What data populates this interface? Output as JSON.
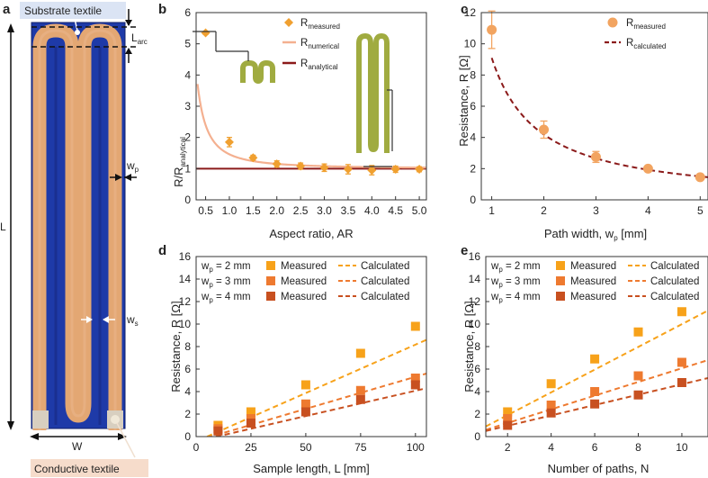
{
  "panels": {
    "a": {
      "letter": "a",
      "labels": {
        "substrate": "Substrate textile",
        "conductive": "Conductive textile",
        "L": "L",
        "W": "W",
        "Larc": "L",
        "Larc_sub": "arc",
        "wp": "w",
        "wp_sub": "p",
        "ws": "w",
        "ws_sub": "s"
      },
      "colors": {
        "substrate": "#1e3aa8",
        "conductive": "#e3a773",
        "label_bg": "#f6dccb"
      }
    },
    "b": {
      "letter": "b"
    },
    "c": {
      "letter": "c"
    },
    "d": {
      "letter": "d"
    },
    "e": {
      "letter": "e"
    }
  },
  "chart_data": [
    {
      "id": "b",
      "type": "scatter",
      "xlabel": "Aspect ratio, AR",
      "ylabel": "R/R",
      "ylabel_sub": "analytical",
      "xlim": [
        0.3,
        5.15
      ],
      "ylim": [
        0,
        6
      ],
      "xticks": [
        "0.5",
        "1.0",
        "1.5",
        "2.0",
        "2.5",
        "3.0",
        "3.5",
        "4.0",
        "4.5",
        "5.0"
      ],
      "yticks": [
        "0",
        "1",
        "2",
        "3",
        "4",
        "5",
        "6"
      ],
      "legend": [
        {
          "main": "R",
          "sub": "measured",
          "color": "#f0a030",
          "marker": "diamond"
        },
        {
          "main": "R",
          "sub": "numerical",
          "color": "#f4b090",
          "marker": "line"
        },
        {
          "main": "R",
          "sub": "analytical",
          "color": "#8b1a1a",
          "marker": "line"
        }
      ],
      "series": [
        {
          "name": "R measured",
          "x": [
            0.5,
            1.0,
            1.5,
            2.0,
            2.5,
            3.0,
            3.5,
            4.0,
            4.5,
            5.0
          ],
          "y": [
            5.35,
            1.85,
            1.35,
            1.15,
            1.08,
            1.03,
            0.98,
            0.95,
            0.98,
            0.98
          ],
          "err": [
            0.05,
            0.15,
            0.08,
            0.1,
            0.1,
            0.12,
            0.15,
            0.15,
            0.1,
            0.08
          ]
        },
        {
          "name": "R numerical",
          "model": "1 + 0.46/x^1.6"
        },
        {
          "name": "R analytical",
          "y_const": 1
        }
      ]
    },
    {
      "id": "c",
      "type": "scatter",
      "xlabel": "Path width, w",
      "xlabel_sub": "p",
      "xlabel_unit": " [mm]",
      "ylabel": "Resistance, R [Ω]",
      "xlim": [
        0.8,
        5.15
      ],
      "ylim": [
        0,
        12
      ],
      "xticks": [
        "1",
        "2",
        "3",
        "4",
        "5"
      ],
      "yticks": [
        "0",
        "2",
        "4",
        "6",
        "8",
        "10",
        "12"
      ],
      "legend": [
        {
          "main": "R",
          "sub": "measured",
          "color": "#f2a460",
          "marker": "circle"
        },
        {
          "main": "R",
          "sub": "calculated",
          "color": "#8b1a1a",
          "marker": "dash"
        }
      ],
      "series": [
        {
          "name": "R measured",
          "x": [
            1,
            2,
            3,
            4,
            5
          ],
          "y": [
            10.9,
            4.5,
            2.75,
            2.0,
            1.45
          ],
          "err": [
            1.2,
            0.55,
            0.35,
            0.1,
            0.1
          ]
        },
        {
          "name": "R calculated",
          "model": "9.1/x^1.12"
        }
      ]
    },
    {
      "id": "d",
      "type": "scatter",
      "xlabel": "Sample length, L [mm]",
      "ylabel": "Resistance, R [Ω]",
      "xlim": [
        0,
        105
      ],
      "ylim": [
        0,
        16
      ],
      "xticks": [
        "0",
        "25",
        "50",
        "75",
        "100"
      ],
      "yticks": [
        "0",
        "2",
        "4",
        "6",
        "8",
        "10",
        "12",
        "14",
        "16"
      ],
      "legend": [
        {
          "wp": "w",
          "wp_sub": "p",
          "width": " = 2 mm",
          "measured": "Measured",
          "calculated": "Calculated",
          "color": "#f7a21a"
        },
        {
          "wp": "w",
          "wp_sub": "p",
          "width": " = 3 mm",
          "measured": "Measured",
          "calculated": "Calculated",
          "color": "#ee7a30"
        },
        {
          "wp": "w",
          "wp_sub": "p",
          "width": " = 4 mm",
          "measured": "Measured",
          "calculated": "Calculated",
          "color": "#c85020"
        }
      ],
      "series": [
        {
          "name": "wp = 2 mm",
          "x": [
            10,
            25,
            50,
            75,
            100
          ],
          "y": [
            1.0,
            2.2,
            4.6,
            7.4,
            9.8
          ],
          "fit": [
            [
              5,
              0.0
            ],
            [
              105,
              8.6
            ]
          ]
        },
        {
          "name": "wp = 3 mm",
          "x": [
            10,
            25,
            50,
            75,
            100
          ],
          "y": [
            0.7,
            1.6,
            2.9,
            4.1,
            5.2
          ],
          "fit": [
            [
              5,
              -0.1
            ],
            [
              105,
              5.6
            ]
          ]
        },
        {
          "name": "wp = 4 mm",
          "x": [
            10,
            25,
            50,
            75,
            100
          ],
          "y": [
            0.5,
            1.2,
            2.2,
            3.3,
            4.6
          ],
          "fit": [
            [
              5,
              -0.2
            ],
            [
              105,
              4.3
            ]
          ]
        }
      ]
    },
    {
      "id": "e",
      "type": "scatter",
      "xlabel": "Number of paths, N",
      "ylabel": "Resistance, R [Ω]",
      "xlim": [
        1,
        11.2
      ],
      "ylim": [
        0,
        16
      ],
      "xticks": [
        "2",
        "4",
        "6",
        "8",
        "10"
      ],
      "yticks": [
        "0",
        "2",
        "4",
        "6",
        "8",
        "10",
        "12",
        "14",
        "16"
      ],
      "legend": [
        {
          "wp": "w",
          "wp_sub": "p",
          "width": " = 2 mm",
          "measured": "Measured",
          "calculated": "Calculated",
          "color": "#f7a21a"
        },
        {
          "wp": "w",
          "wp_sub": "p",
          "width": " = 3 mm",
          "measured": "Measured",
          "calculated": "Calculated",
          "color": "#ee7a30"
        },
        {
          "wp": "w",
          "wp_sub": "p",
          "width": " = 4 mm",
          "measured": "Measured",
          "calculated": "Calculated",
          "color": "#c85020"
        }
      ],
      "series": [
        {
          "name": "wp = 2 mm",
          "x": [
            2,
            4,
            6,
            8,
            10
          ],
          "y": [
            2.2,
            4.7,
            6.9,
            9.3,
            11.1
          ],
          "fit": [
            [
              1,
              0.9
            ],
            [
              11.2,
              11.2
            ]
          ]
        },
        {
          "name": "wp = 3 mm",
          "x": [
            2,
            4,
            6,
            8,
            10
          ],
          "y": [
            1.6,
            2.8,
            4.0,
            5.4,
            6.6
          ],
          "fit": [
            [
              1,
              0.6
            ],
            [
              11.2,
              6.8
            ]
          ]
        },
        {
          "name": "wp = 4 mm",
          "x": [
            2,
            4,
            6,
            8,
            10
          ],
          "y": [
            1.0,
            2.1,
            2.9,
            3.7,
            4.8
          ],
          "fit": [
            [
              1,
              0.5
            ],
            [
              11.2,
              5.2
            ]
          ]
        }
      ]
    }
  ]
}
